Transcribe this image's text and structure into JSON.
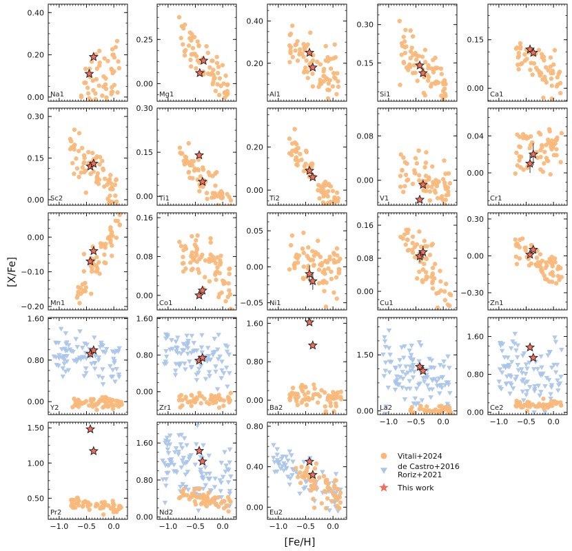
{
  "chart_data": {
    "type": "scatter",
    "xlabel": "[Fe/H]",
    "ylabel": "[X/Fe]",
    "xlim": [
      -1.2,
      0.25
    ],
    "xticks": [
      -1.0,
      -0.5,
      0.0
    ],
    "xtick_labels": [
      "−1.0",
      "−0.5",
      "0.0"
    ],
    "colors": {
      "vitali": "#f9b87a",
      "literature": "#a9c4ea",
      "this_work": "#f26d5b",
      "edge": "#222222"
    },
    "legend": {
      "position": "lower-right",
      "entries": [
        {
          "marker": "circle",
          "label": "Vitali+2024"
        },
        {
          "marker": "triangle",
          "label": "de Castro+2016"
        },
        {
          "marker": "triangle",
          "label": "Roriz+2021"
        },
        {
          "marker": "star",
          "label": "This work"
        }
      ]
    },
    "panels": [
      {
        "element": "Na1",
        "ylim": [
          -0.02,
          0.44
        ],
        "yticks": [
          0.0,
          0.2,
          0.4
        ],
        "ytick_labels": [
          "0.00",
          "0.20",
          "0.40"
        ],
        "vitali": {
          "center": [
            -0.25,
            0.1
          ],
          "spread": [
            0.28,
            0.08
          ],
          "slope": 0.2,
          "n": 55,
          "xrange": [
            -0.6,
            0.1
          ]
        },
        "stars": [
          {
            "x": -0.45,
            "y": 0.11
          },
          {
            "x": -0.37,
            "y": 0.19
          }
        ]
      },
      {
        "element": "Mg1",
        "ylim": [
          -0.1,
          0.45
        ],
        "yticks": [
          0.0,
          0.25
        ],
        "ytick_labels": [
          "0.00",
          "0.25"
        ],
        "vitali": {
          "center": [
            -0.3,
            0.1
          ],
          "spread": [
            0.25,
            0.06
          ],
          "slope": -0.3,
          "n": 70,
          "xrange": [
            -0.8,
            0.1
          ]
        },
        "stars": [
          {
            "x": -0.42,
            "y": 0.06
          },
          {
            "x": -0.35,
            "y": 0.13
          }
        ]
      },
      {
        "element": "Al1",
        "ylim": [
          0.02,
          0.48
        ],
        "yticks": [
          0.2,
          0.4
        ],
        "ytick_labels": [
          "0.20",
          "0.40"
        ],
        "vitali": {
          "center": [
            -0.35,
            0.2
          ],
          "spread": [
            0.25,
            0.06
          ],
          "slope": -0.22,
          "n": 80,
          "xrange": [
            -0.8,
            0.1
          ]
        },
        "stars": [
          {
            "x": -0.43,
            "y": 0.25
          },
          {
            "x": -0.37,
            "y": 0.18
          }
        ]
      },
      {
        "element": "Si1",
        "ylim": [
          0.0,
          0.38
        ],
        "yticks": [
          0.15,
          0.3
        ],
        "ytick_labels": [
          "0.15",
          "0.30"
        ],
        "vitali": {
          "center": [
            -0.3,
            0.12
          ],
          "spread": [
            0.25,
            0.04
          ],
          "slope": -0.17,
          "n": 75,
          "xrange": [
            -0.8,
            0.1
          ]
        },
        "stars": [
          {
            "x": -0.43,
            "y": 0.14
          },
          {
            "x": -0.37,
            "y": 0.11
          }
        ]
      },
      {
        "element": "Ca1",
        "ylim": [
          -0.04,
          0.26
        ],
        "yticks": [
          0.0,
          0.15
        ],
        "ytick_labels": [
          "0.00",
          "0.15"
        ],
        "vitali": {
          "center": [
            -0.3,
            0.07
          ],
          "spread": [
            0.25,
            0.03
          ],
          "slope": -0.11,
          "n": 60,
          "xrange": [
            -0.7,
            0.15
          ]
        },
        "stars": [
          {
            "x": -0.43,
            "y": 0.12
          },
          {
            "x": -0.37,
            "y": 0.11
          }
        ]
      },
      {
        "element": "Sc2",
        "ylim": [
          -0.02,
          0.33
        ],
        "yticks": [
          0.0,
          0.15,
          0.3
        ],
        "ytick_labels": [
          "0.00",
          "0.15",
          "0.30"
        ],
        "vitali": {
          "center": [
            -0.3,
            0.08
          ],
          "spread": [
            0.25,
            0.04
          ],
          "slope": -0.2,
          "n": 75,
          "xrange": [
            -0.8,
            0.1
          ]
        },
        "stars": [
          {
            "x": -0.43,
            "y": 0.12
          },
          {
            "x": -0.37,
            "y": 0.13
          }
        ]
      },
      {
        "element": "Ti1",
        "ylim": [
          -0.03,
          0.3
        ],
        "yticks": [
          0.0,
          0.15,
          0.3
        ],
        "ytick_labels": [
          "0.00",
          "0.15",
          "0.30"
        ],
        "vitali": {
          "center": [
            -0.3,
            0.05
          ],
          "spread": [
            0.25,
            0.03
          ],
          "slope": -0.18,
          "n": 70,
          "xrange": [
            -0.8,
            0.15
          ]
        },
        "stars": [
          {
            "x": -0.43,
            "y": 0.14
          },
          {
            "x": -0.37,
            "y": 0.05
          }
        ]
      },
      {
        "element": "Ti2",
        "ylim": [
          -0.07,
          0.38
        ],
        "yticks": [
          0.0,
          0.2
        ],
        "ytick_labels": [
          "0.00",
          "0.20"
        ],
        "vitali": {
          "center": [
            -0.3,
            0.04
          ],
          "spread": [
            0.25,
            0.04
          ],
          "slope": -0.3,
          "n": 80,
          "xrange": [
            -0.8,
            0.15
          ]
        },
        "stars": [
          {
            "x": -0.43,
            "y": 0.09
          },
          {
            "x": -0.37,
            "y": 0.06
          }
        ]
      },
      {
        "element": "V1",
        "ylim": [
          -0.045,
          0.13
        ],
        "yticks": [
          0.0,
          0.08
        ],
        "ytick_labels": [
          "0.00",
          "0.08"
        ],
        "vitali": {
          "center": [
            -0.3,
            0.0
          ],
          "spread": [
            0.25,
            0.02
          ],
          "slope": -0.04,
          "n": 70,
          "xrange": [
            -0.8,
            0.15
          ]
        },
        "stars": [
          {
            "x": -0.43,
            "y": -0.035,
            "err": 0.004
          },
          {
            "x": -0.37,
            "y": -0.008,
            "err": 0.005
          }
        ]
      },
      {
        "element": "Cr1",
        "ylim": [
          -0.035,
          0.07
        ],
        "yticks": [
          0.0,
          0.04
        ],
        "ytick_labels": [
          "0.00",
          "0.04"
        ],
        "vitali": {
          "center": [
            -0.3,
            0.025
          ],
          "spread": [
            0.25,
            0.012
          ],
          "slope": 0.01,
          "n": 60,
          "xrange": [
            -0.7,
            0.15
          ]
        },
        "stars": [
          {
            "x": -0.43,
            "y": 0.01,
            "err": 0.01
          },
          {
            "x": -0.37,
            "y": 0.02,
            "err": 0.012
          }
        ]
      },
      {
        "element": "Mn1",
        "ylim": [
          -0.21,
          0.07
        ],
        "yticks": [
          -0.2,
          -0.1,
          0.0
        ],
        "ytick_labels": [
          "−0.20",
          "−0.10",
          "0.00"
        ],
        "vitali": {
          "center": [
            -0.3,
            -0.07
          ],
          "spread": [
            0.22,
            0.03
          ],
          "slope": 0.3,
          "n": 65,
          "xrange": [
            -0.7,
            0.15
          ]
        },
        "stars": [
          {
            "x": -0.43,
            "y": -0.07
          },
          {
            "x": -0.37,
            "y": -0.04
          }
        ]
      },
      {
        "element": "Co1",
        "ylim": [
          -0.03,
          0.17
        ],
        "yticks": [
          0.0,
          0.08,
          0.16
        ],
        "ytick_labels": [
          "0.00",
          "0.08",
          "0.16"
        ],
        "vitali": {
          "center": [
            -0.3,
            0.06
          ],
          "spread": [
            0.25,
            0.025
          ],
          "slope": -0.08,
          "n": 75,
          "xrange": [
            -0.8,
            0.15
          ]
        },
        "stars": [
          {
            "x": -0.43,
            "y": 0.0
          },
          {
            "x": -0.37,
            "y": 0.01
          }
        ]
      },
      {
        "element": "Ni1",
        "ylim": [
          -0.06,
          0.075
        ],
        "yticks": [
          -0.05,
          0.0,
          0.05
        ],
        "ytick_labels": [
          "−0.05",
          "0.00",
          "0.05"
        ],
        "vitali": {
          "center": [
            -0.3,
            0.005
          ],
          "spread": [
            0.25,
            0.02
          ],
          "slope": -0.02,
          "n": 75,
          "xrange": [
            -0.8,
            0.15
          ]
        },
        "stars": [
          {
            "x": -0.43,
            "y": -0.01,
            "err": 0.012
          },
          {
            "x": -0.37,
            "y": -0.02,
            "err": 0.012
          }
        ]
      },
      {
        "element": "Cu1",
        "ylim": [
          -0.045,
          0.19
        ],
        "yticks": [
          0.0,
          0.08,
          0.16
        ],
        "ytick_labels": [
          "0.00",
          "0.08",
          "0.16"
        ],
        "vitali": {
          "center": [
            -0.3,
            0.06
          ],
          "spread": [
            0.25,
            0.03
          ],
          "slope": -0.16,
          "n": 70,
          "xrange": [
            -0.8,
            0.15
          ]
        },
        "stars": [
          {
            "x": -0.43,
            "y": 0.085,
            "err": 0.015
          },
          {
            "x": -0.37,
            "y": 0.095,
            "err": 0.015
          }
        ]
      },
      {
        "element": "Zn1",
        "ylim": [
          -0.44,
          0.35
        ],
        "yticks": [
          -0.3,
          0.0,
          0.3
        ],
        "ytick_labels": [
          "−0.30",
          "0.00",
          "0.30"
        ],
        "vitali": {
          "center": [
            -0.3,
            -0.05
          ],
          "spread": [
            0.22,
            0.07
          ],
          "slope": -0.3,
          "n": 65,
          "xrange": [
            -0.7,
            0.15
          ]
        },
        "stars": [
          {
            "x": -0.43,
            "y": 0.01
          },
          {
            "x": -0.37,
            "y": 0.05
          }
        ]
      },
      {
        "element": "Y2",
        "ylim": [
          -0.25,
          1.62
        ],
        "yticks": [
          0.0,
          0.8,
          1.6
        ],
        "ytick_labels": [
          "0.00",
          "0.80",
          "1.60"
        ],
        "vitali": {
          "center": [
            -0.3,
            -0.05
          ],
          "spread": [
            0.25,
            0.06
          ],
          "slope": 0.0,
          "n": 60,
          "xrange": [
            -0.8,
            0.15
          ]
        },
        "lit": {
          "center": [
            -0.3,
            0.8
          ],
          "spread": [
            0.25,
            0.22
          ],
          "slope": -0.2,
          "n": 90,
          "xrange": [
            -1.1,
            0.15
          ]
        },
        "stars": [
          {
            "x": -0.43,
            "y": 0.92
          },
          {
            "x": -0.37,
            "y": 0.99
          }
        ]
      },
      {
        "element": "Zr1",
        "ylim": [
          -0.5,
          1.62
        ],
        "yticks": [
          0.0,
          0.8,
          1.6
        ],
        "ytick_labels": [
          "0.00",
          "0.80",
          "1.60"
        ],
        "vitali": {
          "center": [
            -0.3,
            -0.18
          ],
          "spread": [
            0.25,
            0.07
          ],
          "slope": 0.0,
          "n": 60,
          "xrange": [
            -0.8,
            0.15
          ]
        },
        "lit": {
          "center": [
            -0.3,
            0.75
          ],
          "spread": [
            0.25,
            0.25
          ],
          "slope": -0.2,
          "n": 90,
          "xrange": [
            -1.1,
            0.15
          ]
        },
        "stars": [
          {
            "x": -0.43,
            "y": 0.68
          },
          {
            "x": -0.37,
            "y": 0.74
          }
        ]
      },
      {
        "element": "Ba2",
        "ylim": [
          -0.3,
          1.72
        ],
        "yticks": [
          0.0,
          0.8,
          1.6
        ],
        "ytick_labels": [
          "0.00",
          "0.80",
          "1.60"
        ],
        "vitali": {
          "center": [
            -0.3,
            0.05
          ],
          "spread": [
            0.25,
            0.12
          ],
          "slope": -0.1,
          "n": 65,
          "xrange": [
            -0.8,
            0.15
          ]
        },
        "stars": [
          {
            "x": -0.43,
            "y": 1.62
          },
          {
            "x": -0.37,
            "y": 1.14
          }
        ]
      },
      {
        "element": "La2",
        "ylim": [
          -0.1,
          2.5
        ],
        "yticks": [
          0.0,
          1.5
        ],
        "ytick_labels": [
          "0.00",
          "1.50"
        ],
        "vitali": {
          "center": [
            -0.3,
            0.02
          ],
          "spread": [
            0.25,
            0.06
          ],
          "slope": 0.0,
          "n": 40,
          "xrange": [
            -0.6,
            0.15
          ]
        },
        "lit": {
          "center": [
            -0.3,
            0.95
          ],
          "spread": [
            0.25,
            0.4
          ],
          "slope": -0.4,
          "n": 110,
          "xrange": [
            -1.1,
            0.15
          ]
        },
        "stars": [
          {
            "x": -0.43,
            "y": 1.18
          },
          {
            "x": -0.37,
            "y": 1.07
          }
        ]
      },
      {
        "element": "Ce2",
        "ylim": [
          -0.05,
          2.0
        ],
        "yticks": [
          0.0,
          0.8,
          1.6
        ],
        "ytick_labels": [
          "0.00",
          "0.80",
          "1.60"
        ],
        "vitali": {
          "center": [
            -0.3,
            0.15
          ],
          "spread": [
            0.25,
            0.05
          ],
          "slope": 0.0,
          "n": 50,
          "xrange": [
            -0.7,
            0.15
          ]
        },
        "lit": {
          "center": [
            -0.3,
            0.8
          ],
          "spread": [
            0.25,
            0.35
          ],
          "slope": -0.4,
          "n": 100,
          "xrange": [
            -1.0,
            0.15
          ]
        },
        "stars": [
          {
            "x": -0.43,
            "y": 1.37
          },
          {
            "x": -0.37,
            "y": 1.15
          }
        ]
      },
      {
        "element": "Pr2",
        "ylim": [
          0.2,
          1.58
        ],
        "yticks": [
          0.5,
          1.0,
          1.5
        ],
        "ytick_labels": [
          "0.50",
          "1.00",
          "1.50"
        ],
        "vitali": {
          "center": [
            -0.3,
            0.38
          ],
          "spread": [
            0.25,
            0.05
          ],
          "slope": -0.1,
          "n": 60,
          "xrange": [
            -0.8,
            0.15
          ]
        },
        "stars": [
          {
            "x": -0.43,
            "y": 1.48
          },
          {
            "x": -0.37,
            "y": 1.17
          }
        ]
      },
      {
        "element": "Nd2",
        "ylim": [
          -0.05,
          2.05
        ],
        "yticks": [
          0.0,
          0.8,
          1.6
        ],
        "ytick_labels": [
          "0.00",
          "0.80",
          "1.60"
        ],
        "vitali": {
          "center": [
            -0.3,
            0.38
          ],
          "spread": [
            0.25,
            0.1
          ],
          "slope": -0.2,
          "n": 65,
          "xrange": [
            -0.8,
            0.15
          ]
        },
        "lit": {
          "center": [
            -0.3,
            0.9
          ],
          "spread": [
            0.25,
            0.4
          ],
          "slope": -0.5,
          "n": 110,
          "xrange": [
            -1.1,
            0.15
          ]
        },
        "stars": [
          {
            "x": -0.43,
            "y": 1.43
          },
          {
            "x": -0.37,
            "y": 1.2
          }
        ]
      },
      {
        "element": "Eu2",
        "ylim": [
          -0.12,
          0.84
        ],
        "yticks": [
          0.0,
          0.4,
          0.8
        ],
        "ytick_labels": [
          "0.00",
          "0.40",
          "0.80"
        ],
        "vitali": {
          "center": [
            -0.3,
            0.22
          ],
          "spread": [
            0.22,
            0.08
          ],
          "slope": -0.35,
          "n": 65,
          "xrange": [
            -0.7,
            0.15
          ]
        },
        "lit": {
          "center": [
            -0.3,
            0.2
          ],
          "spread": [
            0.25,
            0.1
          ],
          "slope": -0.35,
          "n": 70,
          "xrange": [
            -1.1,
            0.15
          ]
        },
        "stars": [
          {
            "x": -0.43,
            "y": 0.45
          },
          {
            "x": -0.37,
            "y": 0.32
          }
        ]
      }
    ]
  }
}
